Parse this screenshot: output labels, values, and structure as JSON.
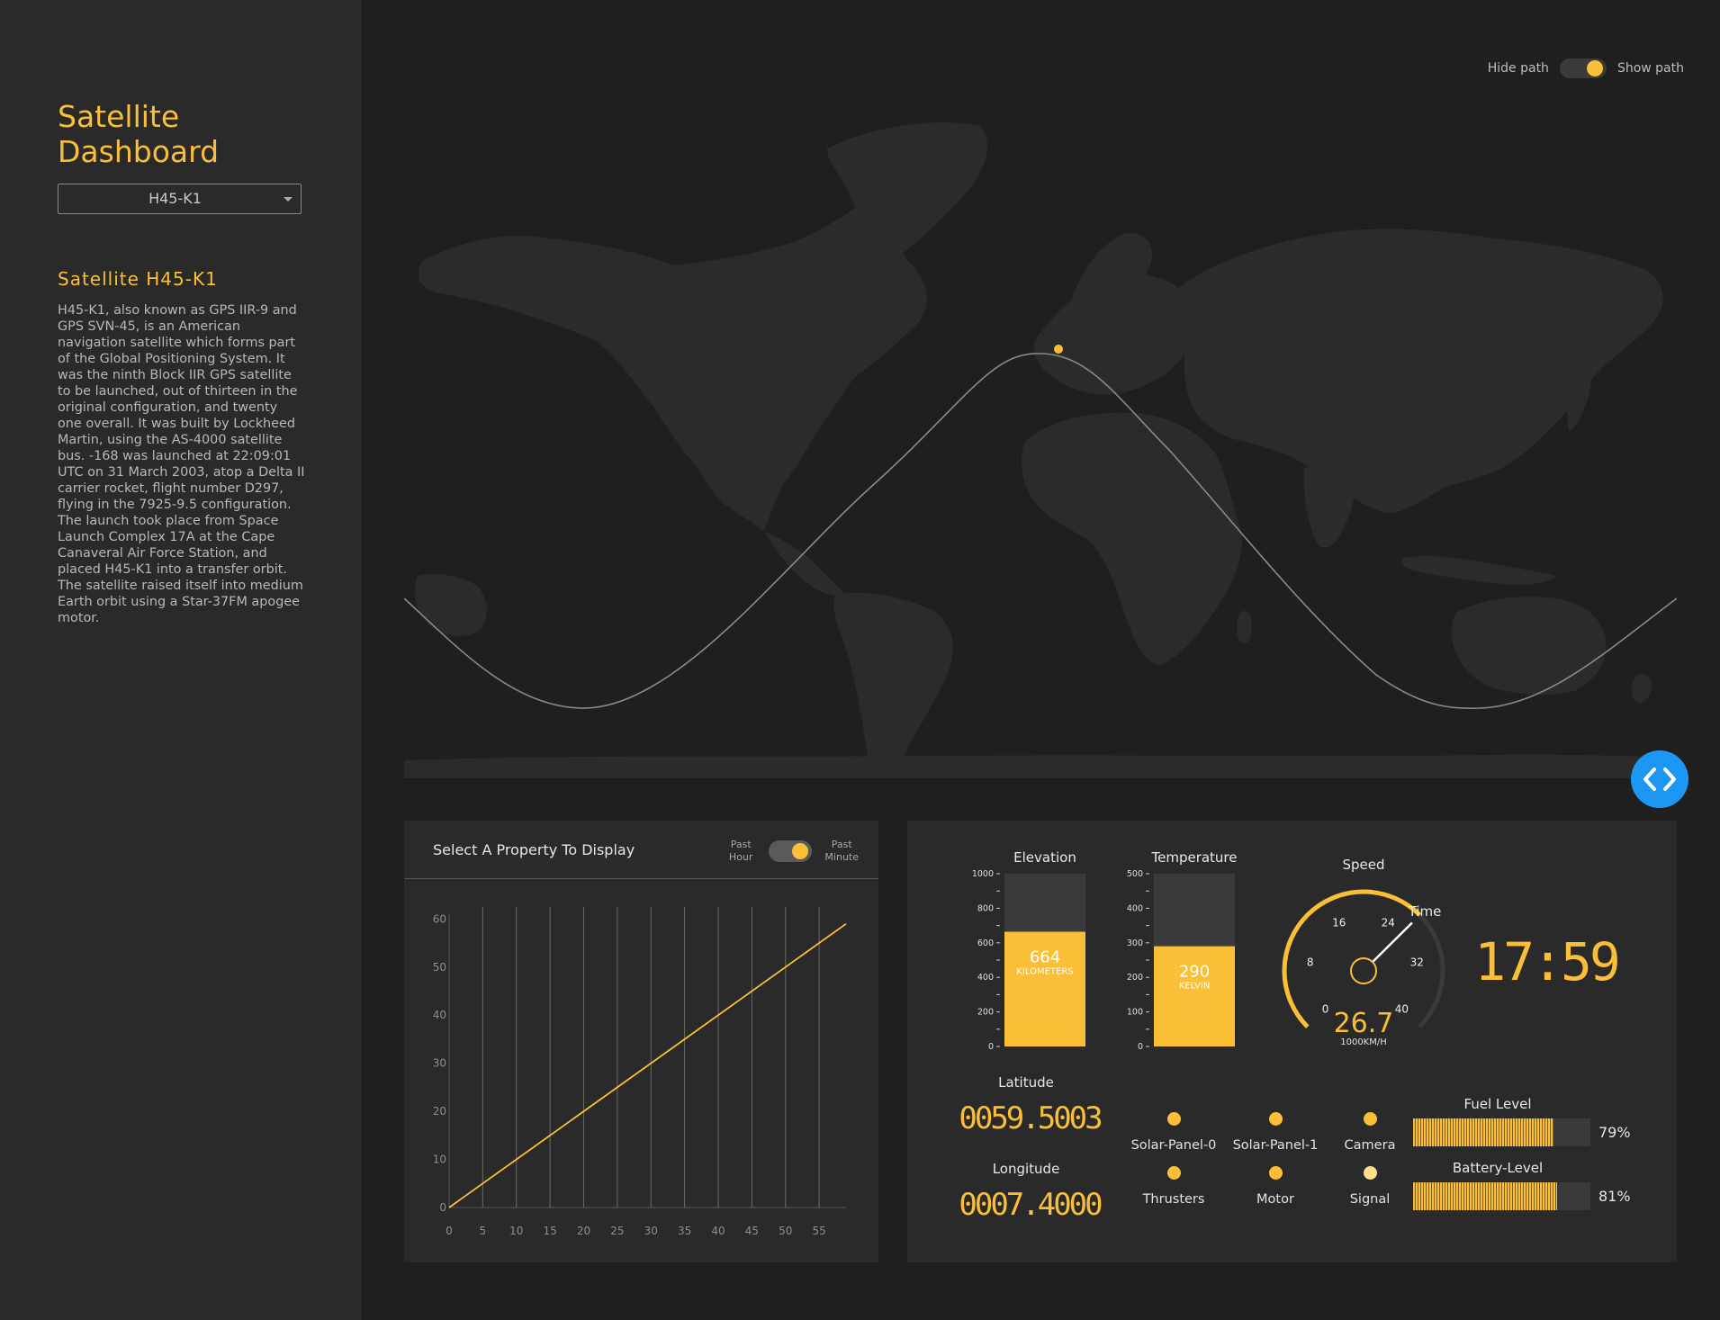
{
  "sidebar": {
    "title": "Satellite Dashboard",
    "select_value": "H45-K1",
    "satellite_title": "Satellite H45-K1",
    "description": "H45-K1, also known as GPS IIR-9 and GPS SVN-45, is an American navigation satellite which forms part of the Global Positioning System. It was the ninth Block IIR GPS satellite to be launched, out of thirteen in the original configuration, and twenty one overall. It was built by Lockheed Martin, using the AS-4000 satellite bus. -168 was launched at 22:09:01 UTC on 31 March 2003, atop a Delta II carrier rocket, flight number D297, flying in the 7925-9.5 configuration. The launch took place from Space Launch Complex 17A at the Cape Canaveral Air Force Station, and placed H45-K1 into a transfer orbit. The satellite raised itself into medium Earth orbit using a Star-37FM apogee motor."
  },
  "path_toggle": {
    "off_label": "Hide path",
    "on_label": "Show path",
    "state": "show"
  },
  "map": {
    "land_color": "#2b2b2b",
    "path_color": "#8a8a8a",
    "satellite_color": "#fbbf37"
  },
  "chart_panel": {
    "title": "Select A Property To Display",
    "toggle_left_line1": "Past",
    "toggle_left_line2": "Hour",
    "toggle_right_line1": "Past",
    "toggle_right_line2": "Minute",
    "toggle_state": "Past Minute"
  },
  "chart_data": {
    "type": "line",
    "title": "",
    "xlabel": "",
    "ylabel": "",
    "x_ticks": [
      0,
      5,
      10,
      15,
      20,
      25,
      30,
      35,
      40,
      45,
      50,
      55
    ],
    "y_ticks": [
      0,
      10,
      20,
      30,
      40,
      50,
      60
    ],
    "xlim": [
      0,
      59
    ],
    "ylim": [
      0,
      61
    ],
    "series": [
      {
        "color": "#fbbf37",
        "x": [
          0,
          59
        ],
        "y": [
          0,
          59
        ]
      }
    ],
    "grid": "vertical"
  },
  "gauges": {
    "elevation": {
      "title": "Elevation",
      "value": "664",
      "unit": "KILOMETERS",
      "min": 0,
      "max": 1000,
      "ticks": [
        "1000",
        "800",
        "600",
        "400",
        "200",
        "0"
      ]
    },
    "temperature": {
      "title": "Temperature",
      "value": "290",
      "unit": "KELVIN",
      "min": 0,
      "max": 500,
      "ticks": [
        "500",
        "400",
        "300",
        "200",
        "100",
        "0"
      ]
    },
    "speed": {
      "title": "Speed",
      "value": "26.7",
      "unit": "1000KM/H",
      "min": 0,
      "max": 40,
      "ticks": [
        "0",
        "8",
        "16",
        "24",
        "32",
        "40"
      ]
    },
    "time": {
      "title": "Time",
      "value": "17:59"
    },
    "latitude": {
      "title": "Latitude",
      "value": "0059.5003"
    },
    "longitude": {
      "title": "Longitude",
      "value": "0007.4000"
    }
  },
  "indicators": [
    {
      "label": "Solar-Panel-0",
      "color": "#fbbf37"
    },
    {
      "label": "Solar-Panel-1",
      "color": "#fbbf37"
    },
    {
      "label": "Camera",
      "color": "#fbbf37"
    },
    {
      "label": "Thrusters",
      "color": "#fbbf37"
    },
    {
      "label": "Motor",
      "color": "#fbbf37"
    },
    {
      "label": "Signal",
      "color": "#ffe08a"
    }
  ],
  "levels": {
    "fuel": {
      "title": "Fuel Level",
      "value": 0.79,
      "label": "79%"
    },
    "battery": {
      "title": "Battery-Level",
      "value": 0.81,
      "label": "81%"
    }
  },
  "colors": {
    "accent": "#fbbf37",
    "fab": "#1c97f3",
    "panel": "#2a2a2a",
    "background": "#1f1f1f"
  }
}
